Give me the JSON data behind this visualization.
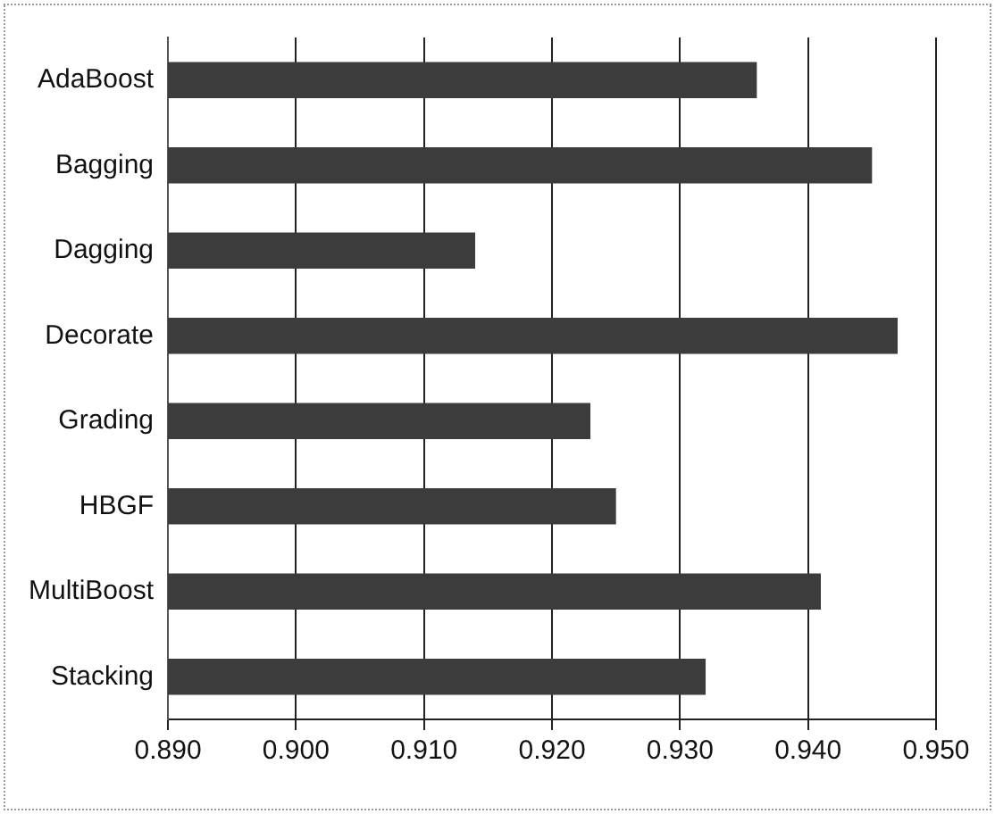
{
  "chart_data": {
    "type": "bar",
    "orientation": "horizontal",
    "categories": [
      "AdaBoost",
      "Bagging",
      "Dagging",
      "Decorate",
      "Grading",
      "HBGF",
      "MultiBoost",
      "Stacking"
    ],
    "values": [
      0.936,
      0.945,
      0.914,
      0.947,
      0.923,
      0.925,
      0.941,
      0.932
    ],
    "color": "#3c3c3c",
    "xlim": [
      0.89,
      0.95
    ],
    "xticks": [
      {
        "value": 0.89,
        "label": "0.890"
      },
      {
        "value": 0.9,
        "label": "0.900"
      },
      {
        "value": 0.91,
        "label": "0.910"
      },
      {
        "value": 0.92,
        "label": "0.920"
      },
      {
        "value": 0.93,
        "label": "0.930"
      },
      {
        "value": 0.94,
        "label": "0.940"
      },
      {
        "value": 0.95,
        "label": "0.950"
      }
    ],
    "grid": "x",
    "legend": false
  }
}
